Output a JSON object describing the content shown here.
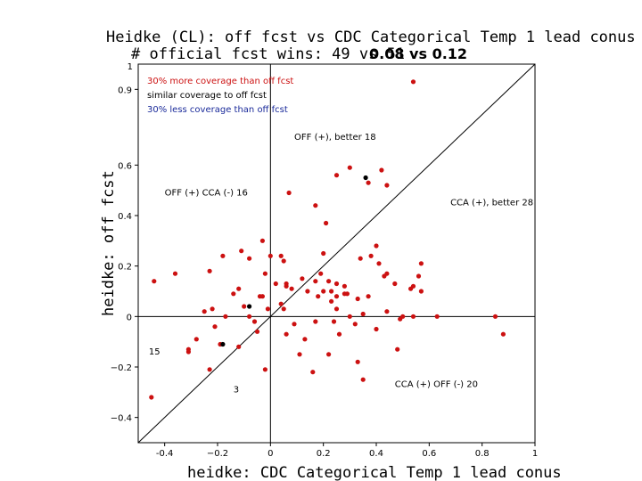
{
  "colors": {
    "red": "#cc1111",
    "black": "#000000",
    "blue": "#1a2a9a"
  },
  "chart_data": {
    "type": "scatter",
    "title": "Heidke (CL): off fcst vs CDC Categorical Temp 1 lead conus",
    "subtitle": "# official fcst wins: 49 vs 51",
    "subtitle_scores": "0.08 vs 0.12",
    "xlabel": "heidke: CDC Categorical Temp 1 lead conus",
    "ylabel": "heidke: off fcst",
    "xlim": [
      -0.5,
      1.0
    ],
    "ylim": [
      -0.5,
      1.0
    ],
    "x_ticks": [
      -0.4,
      -0.2,
      0,
      0.2,
      0.4,
      0.6,
      0.8,
      1
    ],
    "x_tick_labels": [
      "-0.4",
      "−0.2",
      "0",
      "0.2",
      "0.4",
      "0.6",
      "0.8",
      "1"
    ],
    "y_ticks": [
      -0.4,
      -0.2,
      0,
      0.2,
      0.4,
      0.6,
      0.9
    ],
    "y_tick_labels": [
      "−0.4",
      "−0.2",
      "0",
      "0.2",
      "0.4",
      "0.6",
      "0.9"
    ],
    "y_top_label": "1",
    "legend": [
      {
        "label": "30% more coverage than off fcst",
        "color": "#cc1111"
      },
      {
        "label": "similar coverage to off fcst",
        "color": "#000000"
      },
      {
        "label": "30% less coverage than off fcst",
        "color": "#1a2a9a"
      }
    ],
    "annotations": [
      {
        "text": "OFF (+), better 18",
        "x": 0.09,
        "y": 0.7
      },
      {
        "text": "OFF (+) CCA (-) 16",
        "x": -0.4,
        "y": 0.48
      },
      {
        "text": "CCA (+), better 28",
        "x": 0.68,
        "y": 0.44
      },
      {
        "text": "15",
        "x": -0.46,
        "y": -0.15
      },
      {
        "text": "3",
        "x": -0.14,
        "y": -0.3
      },
      {
        "text": "CCA (+) OFF (-) 20",
        "x": 0.47,
        "y": -0.28
      }
    ],
    "series": [
      {
        "color": "red",
        "points": [
          [
            -0.44,
            0.14
          ],
          [
            -0.36,
            0.17
          ],
          [
            -0.45,
            -0.32
          ],
          [
            -0.31,
            -0.14
          ],
          [
            -0.31,
            -0.13
          ],
          [
            -0.28,
            -0.09
          ],
          [
            -0.25,
            0.02
          ],
          [
            -0.23,
            -0.21
          ],
          [
            -0.22,
            0.03
          ],
          [
            -0.23,
            0.18
          ],
          [
            -0.21,
            -0.04
          ],
          [
            -0.19,
            -0.11
          ],
          [
            -0.18,
            0.24
          ],
          [
            -0.17,
            0.0
          ],
          [
            -0.14,
            0.09
          ],
          [
            -0.12,
            -0.12
          ],
          [
            -0.12,
            0.11
          ],
          [
            -0.11,
            0.26
          ],
          [
            -0.1,
            0.04
          ],
          [
            -0.08,
            0.23
          ],
          [
            -0.08,
            0.0
          ],
          [
            -0.06,
            -0.02
          ],
          [
            -0.05,
            -0.06
          ],
          [
            -0.04,
            0.08
          ],
          [
            -0.03,
            0.08
          ],
          [
            -0.03,
            0.3
          ],
          [
            -0.02,
            0.17
          ],
          [
            -0.02,
            -0.21
          ],
          [
            -0.01,
            0.03
          ],
          [
            0.0,
            0.24
          ],
          [
            0.02,
            0.13
          ],
          [
            0.04,
            0.05
          ],
          [
            0.04,
            0.24
          ],
          [
            0.05,
            0.22
          ],
          [
            0.05,
            0.03
          ],
          [
            0.06,
            0.13
          ],
          [
            0.06,
            0.12
          ],
          [
            0.06,
            -0.07
          ],
          [
            0.07,
            0.49
          ],
          [
            0.08,
            0.11
          ],
          [
            0.09,
            -0.03
          ],
          [
            0.11,
            -0.15
          ],
          [
            0.12,
            0.15
          ],
          [
            0.13,
            -0.09
          ],
          [
            0.14,
            0.1
          ],
          [
            0.16,
            -0.22
          ],
          [
            0.17,
            0.14
          ],
          [
            0.17,
            -0.02
          ],
          [
            0.17,
            0.44
          ],
          [
            0.18,
            0.08
          ],
          [
            0.19,
            0.17
          ],
          [
            0.2,
            0.25
          ],
          [
            0.2,
            0.1
          ],
          [
            0.21,
            0.37
          ],
          [
            0.22,
            0.14
          ],
          [
            0.22,
            -0.15
          ],
          [
            0.23,
            0.06
          ],
          [
            0.23,
            0.1
          ],
          [
            0.24,
            -0.02
          ],
          [
            0.25,
            0.56
          ],
          [
            0.25,
            0.08
          ],
          [
            0.25,
            0.03
          ],
          [
            0.25,
            0.13
          ],
          [
            0.26,
            -0.07
          ],
          [
            0.28,
            0.09
          ],
          [
            0.29,
            0.09
          ],
          [
            0.28,
            0.12
          ],
          [
            0.3,
            0.0
          ],
          [
            0.3,
            0.59
          ],
          [
            0.32,
            -0.03
          ],
          [
            0.33,
            0.07
          ],
          [
            0.33,
            -0.18
          ],
          [
            0.34,
            0.23
          ],
          [
            0.35,
            0.01
          ],
          [
            0.35,
            -0.25
          ],
          [
            0.37,
            0.53
          ],
          [
            0.37,
            0.08
          ],
          [
            0.38,
            0.24
          ],
          [
            0.4,
            0.28
          ],
          [
            0.4,
            -0.05
          ],
          [
            0.41,
            0.21
          ],
          [
            0.42,
            0.58
          ],
          [
            0.43,
            0.16
          ],
          [
            0.44,
            0.17
          ],
          [
            0.44,
            0.02
          ],
          [
            0.44,
            0.52
          ],
          [
            0.47,
            0.13
          ],
          [
            0.49,
            -0.01
          ],
          [
            0.5,
            0.0
          ],
          [
            0.53,
            0.11
          ],
          [
            0.54,
            0.0
          ],
          [
            0.54,
            0.93
          ],
          [
            0.54,
            0.12
          ],
          [
            0.56,
            0.16
          ],
          [
            0.57,
            0.21
          ],
          [
            0.57,
            0.1
          ],
          [
            0.63,
            0.0
          ],
          [
            0.85,
            0.0
          ],
          [
            0.88,
            -0.07
          ],
          [
            0.48,
            -0.13
          ]
        ]
      },
      {
        "color": "black",
        "points": [
          [
            0.36,
            0.55
          ],
          [
            -0.08,
            0.04
          ],
          [
            -0.18,
            -0.11
          ]
        ]
      }
    ]
  }
}
